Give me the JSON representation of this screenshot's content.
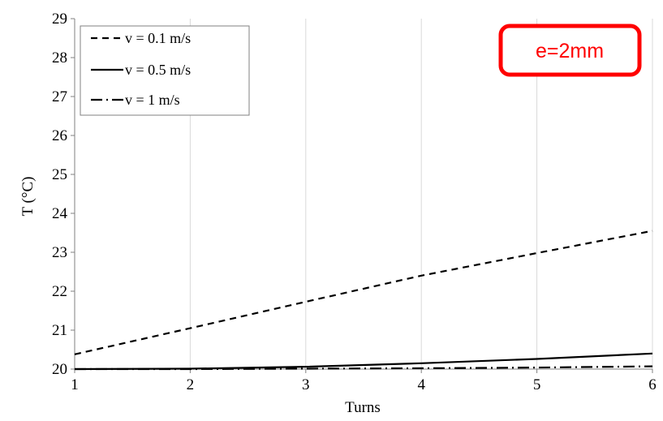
{
  "chart_data": {
    "type": "line",
    "xlabel": "Turns",
    "ylabel": "T (°C)",
    "xlim": [
      1,
      6
    ],
    "ylim": [
      20,
      29
    ],
    "x_ticks": [
      "1",
      "2",
      "3",
      "4",
      "5",
      "6"
    ],
    "y_ticks": [
      "20",
      "21",
      "22",
      "23",
      "24",
      "25",
      "26",
      "27",
      "28",
      "29"
    ],
    "grid": "vertical",
    "legend_position": "top-left",
    "series": [
      {
        "name": "v = 0.1 m/s",
        "style": "dashed",
        "x": [
          1,
          2,
          3,
          4,
          5,
          6
        ],
        "y": [
          20.38,
          21.05,
          21.73,
          22.4,
          22.98,
          23.55
        ]
      },
      {
        "name": "v = 0.5 m/s",
        "style": "solid",
        "x": [
          1,
          2,
          3,
          4,
          5,
          6
        ],
        "y": [
          20.0,
          20.01,
          20.06,
          20.15,
          20.26,
          20.4
        ]
      },
      {
        "name": "v = 1 m/s",
        "style": "dash-dot",
        "x": [
          1,
          2,
          3,
          4,
          5,
          6
        ],
        "y": [
          20.0,
          20.0,
          20.01,
          20.02,
          20.04,
          20.07
        ]
      }
    ],
    "annotation": {
      "text": "e=2mm",
      "color": "#ff0000"
    }
  }
}
